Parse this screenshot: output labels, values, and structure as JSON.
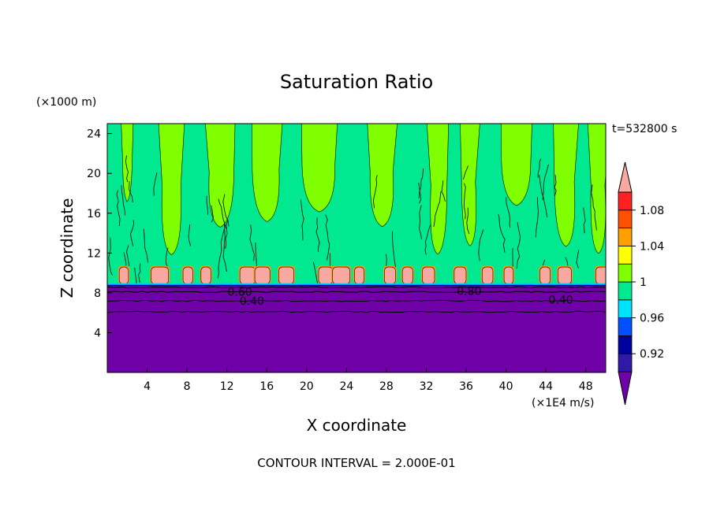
{
  "chart_data": {
    "type": "heatmap",
    "title": "Saturation Ratio",
    "xlabel": "X coordinate",
    "ylabel": "Z coordinate",
    "x_unit": "(×1E4 m/s)",
    "y_unit": "(×1000 m)",
    "time_label": "t=532800 s",
    "footer": "CONTOUR INTERVAL = 2.000E-01",
    "xlim": [
      0,
      50
    ],
    "ylim": [
      0,
      25
    ],
    "x_ticks": [
      4,
      8,
      12,
      16,
      20,
      24,
      28,
      32,
      36,
      40,
      44,
      48
    ],
    "y_ticks": [
      4,
      8,
      12,
      16,
      20,
      24
    ],
    "regions": {
      "lower_layer_top_z": 8.8,
      "upper_layer_value": "≈1 (0.98–1.02)",
      "lower_layer_value": "< 0.92"
    },
    "contour_labels": [
      {
        "text": "0.60",
        "x": 13.3,
        "z": 8.1
      },
      {
        "text": "0.40",
        "x": 14.5,
        "z": 7.2
      },
      {
        "text": "0.80",
        "x": 36.3,
        "z": 8.2
      },
      {
        "text": "0.40",
        "x": 45.5,
        "z": 7.3
      }
    ],
    "colorbar": {
      "levels": [
        0.92,
        0.94,
        0.96,
        0.98,
        1,
        1.02,
        1.04,
        1.06,
        1.08,
        1.1
      ],
      "labels": [
        "0.92",
        "0.96",
        "1",
        "1.04",
        "1.08"
      ],
      "label_values": [
        0.92,
        0.96,
        1.0,
        1.04,
        1.08
      ],
      "colors": [
        "#7000a8",
        "#3018a8",
        "#0000a0",
        "#0050ff",
        "#00e0ff",
        "#00e890",
        "#80ff00",
        "#ffff00",
        "#ffa000",
        "#ff5000",
        "#ff2020",
        "#f8a8a0"
      ]
    },
    "color_ticks_note": "",
    "fill_colors": {
      "stratosphere": "#7000a8",
      "band_a": "#00e890",
      "band_b": "#80ff00",
      "cap": "#f8a8a0",
      "edge": "#ffa000"
    }
  }
}
